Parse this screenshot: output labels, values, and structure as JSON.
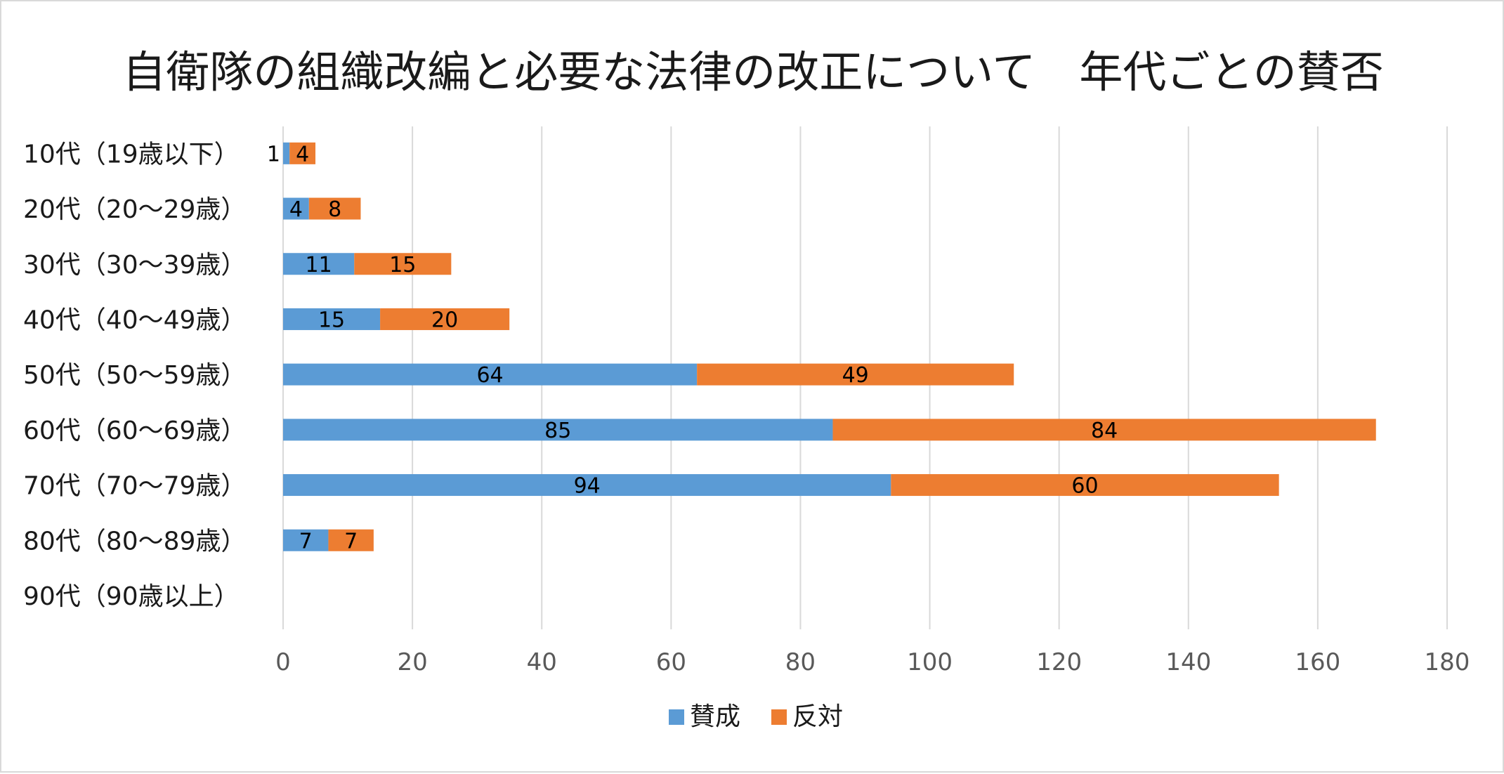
{
  "chart_data": {
    "type": "bar",
    "orientation": "horizontal",
    "stacked": true,
    "title": "自衛隊の組織改編と必要な法律の改正について　年代ごとの賛否",
    "categories": [
      "10代（19歳以下）",
      "20代（20〜29歳）",
      "30代（30〜39歳）",
      "40代（40〜49歳）",
      "50代（50〜59歳）",
      "60代（60〜69歳）",
      "70代（70〜79歳）",
      "80代（80〜89歳）",
      "90代（90歳以上）"
    ],
    "series": [
      {
        "name": "賛成",
        "color": "#5b9bd5",
        "values": [
          1,
          4,
          11,
          15,
          64,
          85,
          94,
          7,
          0
        ]
      },
      {
        "name": "反対",
        "color": "#ed7d31",
        "values": [
          4,
          8,
          15,
          20,
          49,
          84,
          60,
          7,
          0
        ]
      }
    ],
    "xlim": [
      0,
      180
    ],
    "xticks": [
      0,
      20,
      40,
      60,
      80,
      100,
      120,
      140,
      160,
      180
    ],
    "xlabel": "",
    "ylabel": "",
    "grid": true,
    "legend_position": "bottom"
  }
}
